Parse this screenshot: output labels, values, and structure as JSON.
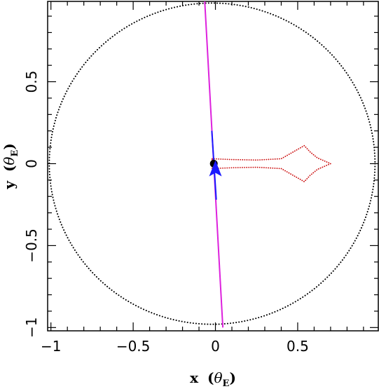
{
  "chart_data": {
    "type": "scatter",
    "title": "",
    "xlabel": {
      "var": "x",
      "open": "(",
      "greek": "θ",
      "sub": "E",
      "close": ")"
    },
    "ylabel": {
      "var": "y",
      "open": "(",
      "greek": "θ",
      "sub": "E",
      "close": ")"
    },
    "xlim": [
      -1.02,
      0.99
    ],
    "ylim": [
      -1.02,
      0.99
    ],
    "grid": false,
    "legend": "none",
    "xticks": [
      -1,
      -0.5,
      0,
      0.5
    ],
    "xtick_labels": [
      "−1",
      "−0.5",
      "0",
      "0.5"
    ],
    "yticks": [
      -1,
      -0.5,
      0,
      0.5
    ],
    "ytick_labels": [
      "−1",
      "−0.5",
      "0",
      "0.5"
    ],
    "series": [
      {
        "kind": "critical_curve",
        "color": "#000000",
        "style": "dotted",
        "center": [
          -0.02,
          0.0
        ],
        "radius_x": 0.99,
        "radius_y": 0.98
      },
      {
        "kind": "caustic",
        "color": "#cc1111",
        "style": "dotted",
        "x": [
          -0.02,
          0.1,
          0.25,
          0.4,
          0.54,
          0.575,
          0.62,
          0.7,
          0.62,
          0.575,
          0.54,
          0.4,
          0.25,
          0.1,
          -0.02,
          -0.02
        ],
        "y": [
          0.03,
          0.025,
          0.022,
          0.03,
          0.11,
          0.072,
          0.035,
          0.0,
          -0.035,
          -0.072,
          -0.11,
          -0.03,
          -0.022,
          -0.025,
          -0.03,
          0.03
        ]
      },
      {
        "kind": "source_trajectory",
        "color": "#dd22dd",
        "x": [
          -0.065,
          0.045
        ],
        "y": [
          0.99,
          -1.0
        ]
      },
      {
        "kind": "trajectory_segment",
        "color": "#1a1aff",
        "x": [
          -0.022,
          0.005
        ],
        "y": [
          0.2,
          -0.22
        ]
      },
      {
        "kind": "source",
        "color": "#000000",
        "x": -0.01,
        "y": 0.0
      },
      {
        "kind": "direction_arrow",
        "color": "#1a1aff",
        "x": 0.0,
        "y": -0.035
      }
    ]
  }
}
